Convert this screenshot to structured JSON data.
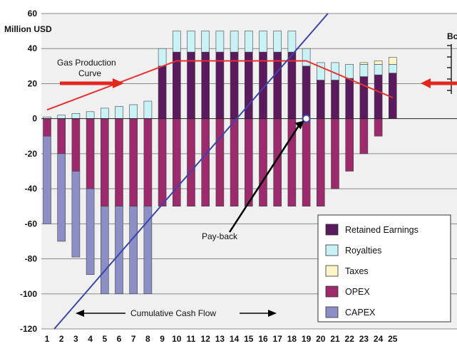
{
  "chart_data": {
    "type": "bar",
    "stacked": true,
    "ylabel": "Million USD",
    "ylim": [
      -120,
      60
    ],
    "yticks": [
      60,
      40,
      20,
      0,
      -20,
      -40,
      -60,
      -80,
      -100,
      -120
    ],
    "categories": [
      "1",
      "2",
      "3",
      "4",
      "5",
      "6",
      "7",
      "8",
      "9",
      "10",
      "11",
      "12",
      "13",
      "14",
      "15",
      "16",
      "17",
      "18",
      "19",
      "20",
      "21",
      "22",
      "23",
      "24",
      "25"
    ],
    "grid": true,
    "legend_position": "bottom-right",
    "series": [
      {
        "name": "Retained Earnings",
        "color": "#5b1a5e",
        "values": [
          0,
          0,
          0,
          0,
          0,
          0,
          0,
          0,
          30,
          38,
          38,
          38,
          38,
          38,
          38,
          38,
          38,
          38,
          30,
          22,
          22,
          23,
          24,
          25,
          26
        ]
      },
      {
        "name": "Royalties",
        "color": "#c9f2f7",
        "values": [
          1,
          2,
          3,
          4,
          6,
          7,
          8,
          10,
          10,
          12,
          12,
          12,
          12,
          12,
          12,
          12,
          12,
          12,
          10,
          10,
          10,
          8,
          7,
          6,
          5
        ]
      },
      {
        "name": "Taxes",
        "color": "#fbf5c8",
        "values": [
          0,
          0,
          0,
          0,
          0,
          0,
          0,
          0,
          0,
          0,
          0,
          0,
          0,
          0,
          0,
          0,
          0,
          0,
          0,
          0,
          0,
          0,
          1,
          2,
          4
        ]
      },
      {
        "name": "OPEX",
        "color": "#9c2a6c",
        "values": [
          -10,
          -20,
          -30,
          -40,
          -50,
          -50,
          -50,
          -50,
          -50,
          -50,
          -50,
          -50,
          -50,
          -50,
          -50,
          -50,
          -50,
          -50,
          -50,
          -50,
          -40,
          -30,
          -20,
          -10,
          0
        ]
      },
      {
        "name": "CAPEX",
        "color": "#8c8fc6",
        "values": [
          -50,
          -50,
          -49,
          -49,
          -50,
          -50,
          -50,
          -50,
          0,
          0,
          0,
          0,
          0,
          0,
          0,
          0,
          0,
          0,
          0,
          0,
          0,
          0,
          0,
          0,
          0
        ]
      }
    ],
    "gas_production_curve": {
      "x": [
        1,
        10,
        19,
        25
      ],
      "y": [
        5,
        33,
        33,
        12
      ]
    },
    "cumulative_cash_flow_line": {
      "x": [
        1.5,
        20.5
      ],
      "y": [
        -120,
        60
      ]
    },
    "payback_year": 19,
    "annotations": {
      "gas_production": [
        "Gas Production",
        "Curve"
      ],
      "payback": "Pay-back",
      "cumulative": "Cumulative Cash Flow",
      "right_axis_partial": "Bc"
    },
    "colors": {
      "gas_curve": "#e8302f",
      "arrow_red": "#e4261f",
      "cum_line": "#3b46a8",
      "grid": "#8a8a8a",
      "plot_bg": "#f0f0f0"
    }
  }
}
